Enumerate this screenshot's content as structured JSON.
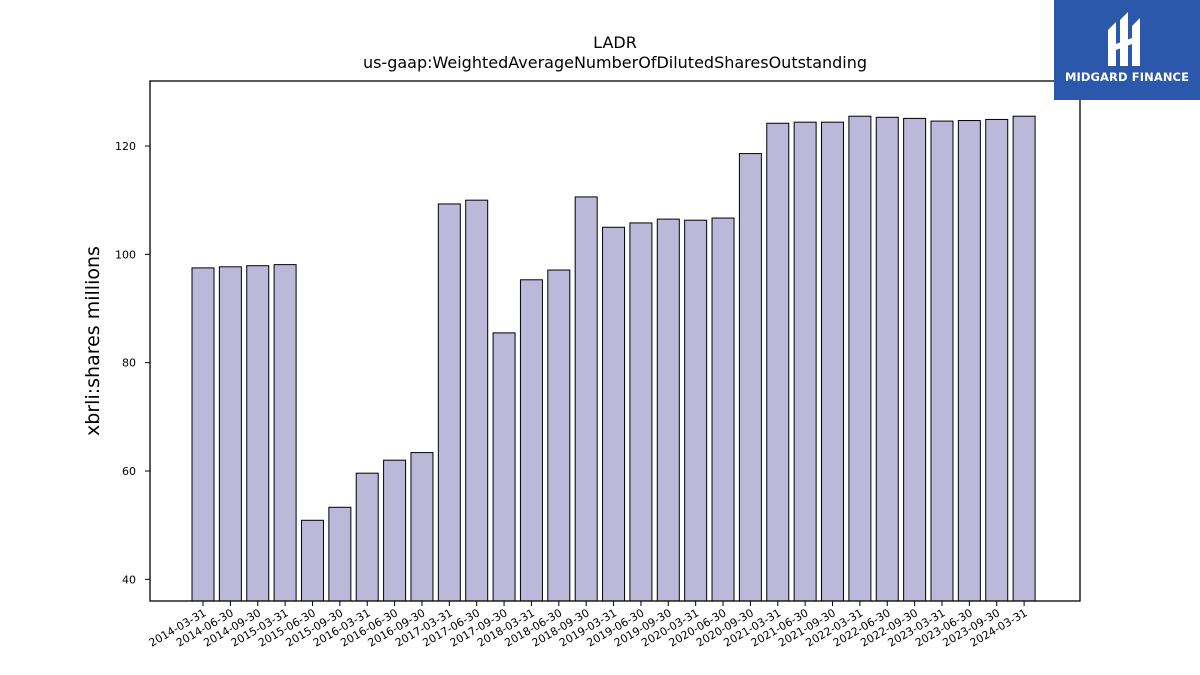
{
  "brand": {
    "name": "MIDGARD FINANCE",
    "color": "#2b58ab",
    "icon": "midgard-logo-icon"
  },
  "chart_data": {
    "type": "bar",
    "title": "LADR",
    "subtitle": "us-gaap:WeightedAverageNumberOfDilutedSharesOutstanding",
    "xlabel": "",
    "ylabel": "xbrli:shares millions",
    "ylim": [
      36,
      132
    ],
    "yticks": [
      40,
      60,
      80,
      100,
      120
    ],
    "grid": false,
    "bar_color": "#bcb8da",
    "bar_edge_color": "#000000",
    "categories": [
      "2014-03-31",
      "2014-06-30",
      "2014-09-30",
      "2015-03-31",
      "2015-06-30",
      "2015-09-30",
      "2016-03-31",
      "2016-06-30",
      "2016-09-30",
      "2017-03-31",
      "2017-06-30",
      "2017-09-30",
      "2018-03-31",
      "2018-06-30",
      "2018-09-30",
      "2019-03-31",
      "2019-06-30",
      "2019-09-30",
      "2020-03-31",
      "2020-06-30",
      "2020-09-30",
      "2021-03-31",
      "2021-06-30",
      "2021-09-30",
      "2022-03-31",
      "2022-06-30",
      "2022-09-30",
      "2023-03-31",
      "2023-06-30",
      "2023-09-30",
      "2024-03-31"
    ],
    "values": [
      97.5,
      97.7,
      97.9,
      98.1,
      50.9,
      53.3,
      59.6,
      62.0,
      63.4,
      109.3,
      110.0,
      85.5,
      95.3,
      97.1,
      110.6,
      105.0,
      105.8,
      106.5,
      106.3,
      106.7,
      118.6,
      124.2,
      124.4,
      124.4,
      125.5,
      125.3,
      125.1,
      124.6,
      124.7,
      124.9,
      125.5
    ]
  }
}
